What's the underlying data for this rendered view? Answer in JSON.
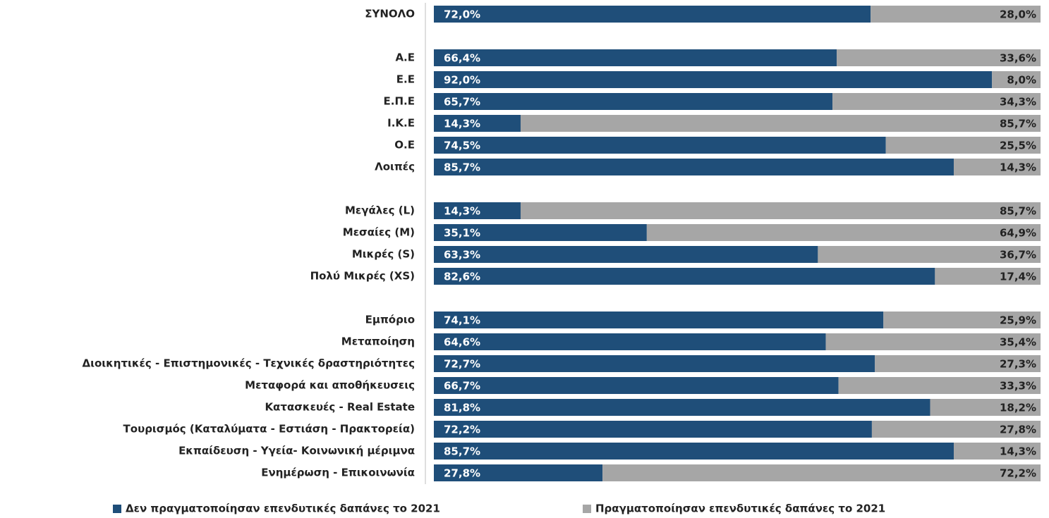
{
  "chart_data": {
    "type": "stacked-barh",
    "categories": [
      "ΣΥΝΟΛΟ",
      null,
      "Α.Ε",
      "Ε.Ε",
      "Ε.Π.Ε",
      "Ι.Κ.Ε",
      "Ο.Ε",
      "Λοιπές",
      null,
      "Μεγάλες (L)",
      "Μεσαίες (Μ)",
      "Μικρές (S)",
      "Πολύ Μικρές (XS)",
      null,
      "Εμπόριο",
      "Μεταποίηση",
      "Διοικητικές - Επιστημονικές - Τεχνικές δραστηριότητες",
      "Μεταφορά και αποθήκευσεις",
      "Κατασκευές - Real Estate",
      "Τουρισμός (Καταλύματα - Εστιάση - Πρακτορεία)",
      "Εκπαίδευση - Υγεία- Κοινωνική μέριμνα",
      "Ενημέρωση - Επικοινωνία"
    ],
    "series": [
      {
        "name": "Δεν πραγματοποίησαν επενδυτικές δαπάνες το 2021",
        "color": "#1f4e79",
        "values": [
          72.0,
          null,
          66.4,
          92.0,
          65.7,
          14.3,
          74.5,
          85.7,
          null,
          14.3,
          35.1,
          63.3,
          82.6,
          null,
          74.1,
          64.6,
          72.7,
          66.7,
          81.8,
          72.2,
          85.7,
          27.8
        ],
        "value_labels": [
          "72,0%",
          null,
          "66,4%",
          "92,0%",
          "65,7%",
          "14,3%",
          "74,5%",
          "85,7%",
          null,
          "14,3%",
          "35,1%",
          "63,3%",
          "82,6%",
          null,
          "74,1%",
          "64,6%",
          "72,7%",
          "66,7%",
          "81,8%",
          "72,2%",
          "85,7%",
          "27,8%"
        ]
      },
      {
        "name": "Πραγματοποίησαν επενδυτικές δαπάνες το 2021",
        "color": "#a6a6a6",
        "values": [
          28.0,
          null,
          33.6,
          8.0,
          34.3,
          85.7,
          25.5,
          14.3,
          null,
          85.7,
          64.9,
          36.7,
          17.4,
          null,
          25.9,
          35.4,
          27.3,
          33.3,
          18.2,
          27.8,
          14.3,
          72.2
        ],
        "value_labels": [
          "28,0%",
          null,
          "33,6%",
          "8,0%",
          "34,3%",
          "85,7%",
          "25,5%",
          "14,3%",
          null,
          "85,7%",
          "64,9%",
          "36,7%",
          "17,4%",
          null,
          "25,9%",
          "35,4%",
          "27,3%",
          "33,3%",
          "18,2%",
          "27,8%",
          "14,3%",
          "72,2%"
        ]
      }
    ],
    "xlim": [
      0,
      100
    ],
    "legend": "bottom"
  }
}
